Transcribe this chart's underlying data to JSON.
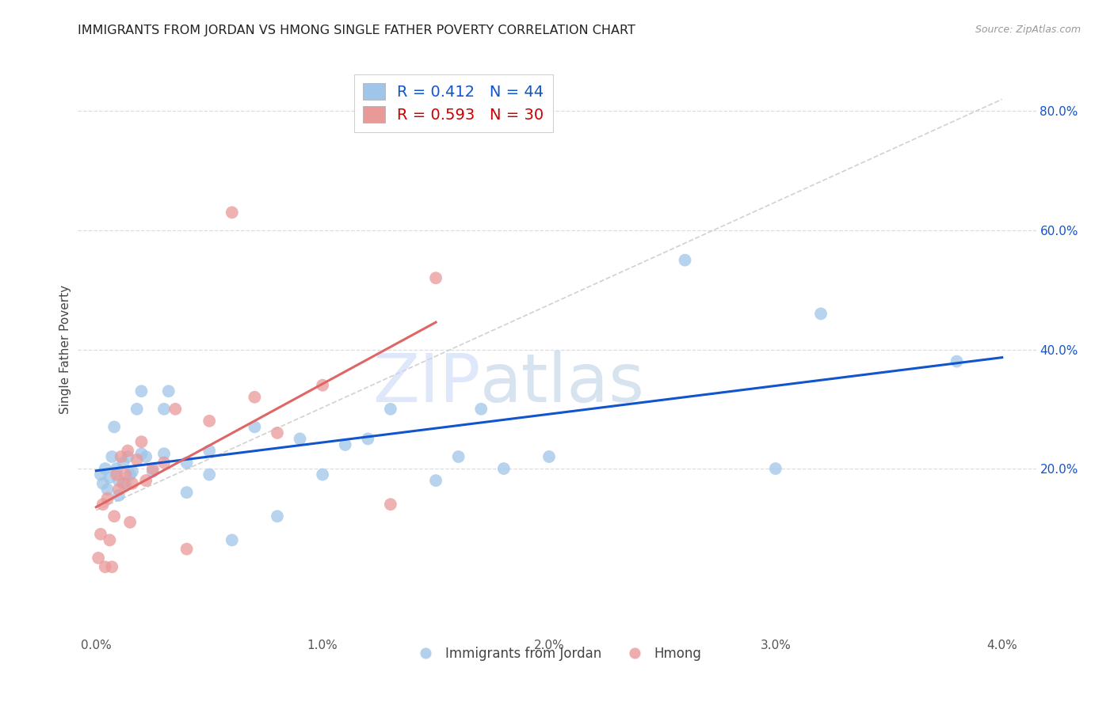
{
  "title": "IMMIGRANTS FROM JORDAN VS HMONG SINGLE FATHER POVERTY CORRELATION CHART",
  "source": "Source: ZipAtlas.com",
  "ylabel": "Single Father Poverty",
  "x_ticks": [
    0.0,
    0.01,
    0.02,
    0.03,
    0.04
  ],
  "x_tick_labels": [
    "0.0%",
    "1.0%",
    "2.0%",
    "3.0%",
    "4.0%"
  ],
  "y_ticks_right": [
    0.2,
    0.4,
    0.6,
    0.8
  ],
  "y_tick_labels_right": [
    "20.0%",
    "40.0%",
    "60.0%",
    "80.0%"
  ],
  "xlim": [
    -0.0008,
    0.0415
  ],
  "ylim": [
    -0.08,
    0.88
  ],
  "legend_blue_label": "R = 0.412   N = 44",
  "legend_pink_label": "R = 0.593   N = 30",
  "legend_jordan_label": "Immigrants from Jordan",
  "legend_hmong_label": "Hmong",
  "watermark_zip": "ZIP",
  "watermark_atlas": "atlas",
  "blue_color": "#9fc5e8",
  "pink_color": "#ea9999",
  "blue_line_color": "#1155cc",
  "pink_line_color": "#e06666",
  "diag_color": "#cccccc",
  "grid_color": "#dddddd",
  "jordan_x": [
    0.0002,
    0.0003,
    0.0004,
    0.0005,
    0.0006,
    0.0007,
    0.0008,
    0.0009,
    0.001,
    0.001,
    0.0012,
    0.0013,
    0.0014,
    0.0015,
    0.0016,
    0.0018,
    0.002,
    0.002,
    0.0022,
    0.0025,
    0.003,
    0.003,
    0.0032,
    0.004,
    0.004,
    0.005,
    0.005,
    0.006,
    0.007,
    0.008,
    0.009,
    0.01,
    0.011,
    0.012,
    0.013,
    0.015,
    0.016,
    0.017,
    0.018,
    0.02,
    0.026,
    0.03,
    0.032,
    0.038
  ],
  "jordan_y": [
    0.19,
    0.175,
    0.2,
    0.165,
    0.185,
    0.22,
    0.27,
    0.2,
    0.18,
    0.155,
    0.21,
    0.175,
    0.22,
    0.19,
    0.195,
    0.3,
    0.225,
    0.33,
    0.22,
    0.195,
    0.3,
    0.225,
    0.33,
    0.16,
    0.21,
    0.19,
    0.23,
    0.08,
    0.27,
    0.12,
    0.25,
    0.19,
    0.24,
    0.25,
    0.3,
    0.18,
    0.22,
    0.3,
    0.2,
    0.22,
    0.55,
    0.2,
    0.46,
    0.38
  ],
  "hmong_x": [
    0.0001,
    0.0002,
    0.0003,
    0.0004,
    0.0005,
    0.0006,
    0.0007,
    0.0008,
    0.0009,
    0.001,
    0.0011,
    0.0012,
    0.0013,
    0.0014,
    0.0015,
    0.0016,
    0.0018,
    0.002,
    0.0022,
    0.0025,
    0.003,
    0.0035,
    0.004,
    0.005,
    0.006,
    0.007,
    0.008,
    0.01,
    0.013,
    0.015
  ],
  "hmong_y": [
    0.05,
    0.09,
    0.14,
    0.035,
    0.15,
    0.08,
    0.035,
    0.12,
    0.19,
    0.165,
    0.22,
    0.175,
    0.19,
    0.23,
    0.11,
    0.175,
    0.215,
    0.245,
    0.18,
    0.2,
    0.21,
    0.3,
    0.065,
    0.28,
    0.63,
    0.32,
    0.26,
    0.34,
    0.14,
    0.52
  ],
  "title_fontsize": 11.5,
  "axis_label_fontsize": 11,
  "tick_fontsize": 11,
  "legend_fontsize": 14,
  "watermark_fontsize_zip": 62,
  "watermark_fontsize_atlas": 62
}
